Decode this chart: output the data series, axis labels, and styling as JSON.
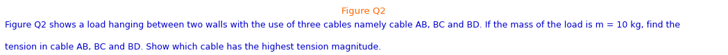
{
  "title": "Figure Q2",
  "title_color": "#FF6600",
  "title_fontsize": 9.5,
  "body_text_line1": "Figure Q2 shows a load hanging between two walls with the use of three cables namely cable AB, BC and BD. If the mass of the load is m = 10 kg, find the",
  "body_text_line2": "tension in cable AB, BC and BD. Show which cable has the highest tension magnitude.",
  "body_color": "#0000CC",
  "body_fontsize": 9.0,
  "bg_color": "#FFFFFF",
  "fig_width": 10.49,
  "fig_height": 0.8,
  "dpi": 100
}
